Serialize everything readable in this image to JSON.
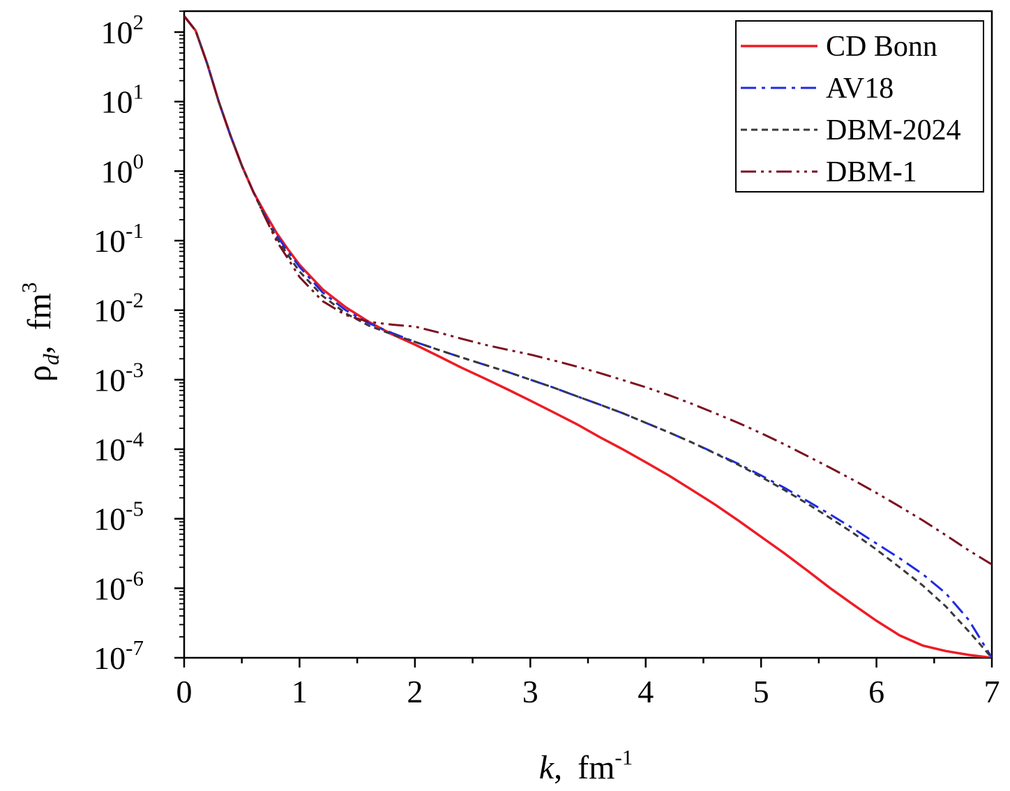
{
  "chart_data": {
    "type": "line",
    "xlabel": {
      "var": "k",
      "sep": ",",
      "unit": "fm",
      "exp": "-1"
    },
    "ylabel": {
      "var": "ρ",
      "sub": "d",
      "sep": ",",
      "unit": "fm",
      "exp": "3"
    },
    "x_ticks": [
      "0",
      "1",
      "2",
      "3",
      "4",
      "5",
      "6",
      "7"
    ],
    "y_tick_exponents": [
      "2",
      "1",
      "0",
      "-1",
      "-2",
      "-3",
      "-4",
      "-5",
      "-6",
      "-7"
    ],
    "y_tick_base": "10",
    "xlim": [
      0,
      7
    ],
    "ylim": [
      1e-07,
      200
    ],
    "yscale": "log",
    "grid": false,
    "legend_position": "top-right",
    "series": [
      {
        "name": "CD Bonn",
        "color": "#ee1c25",
        "dash": "solid",
        "x": [
          0,
          0.1,
          0.2,
          0.3,
          0.4,
          0.5,
          0.6,
          0.7,
          0.8,
          0.9,
          1.0,
          1.2,
          1.4,
          1.6,
          1.8,
          2.0,
          2.2,
          2.4,
          2.6,
          2.8,
          3.0,
          3.2,
          3.4,
          3.6,
          3.8,
          4.0,
          4.2,
          4.4,
          4.6,
          4.8,
          5.0,
          5.2,
          5.4,
          5.6,
          5.8,
          6.0,
          6.2,
          6.4,
          6.6,
          6.8,
          7.0
        ],
        "y": [
          170,
          105,
          35,
          10,
          3.3,
          1.2,
          0.5,
          0.25,
          0.13,
          0.075,
          0.045,
          0.02,
          0.011,
          0.0068,
          0.0045,
          0.0032,
          0.0022,
          0.0015,
          0.00105,
          0.00073,
          0.0005,
          0.00034,
          0.00023,
          0.00015,
          0.0001,
          6.5e-05,
          4.2e-05,
          2.6e-05,
          1.6e-05,
          9.5e-06,
          5.5e-06,
          3.2e-06,
          1.8e-06,
          1e-06,
          5.8e-07,
          3.4e-07,
          2.1e-07,
          1.5e-07,
          1.25e-07,
          1.1e-07,
          1e-07
        ]
      },
      {
        "name": "AV18",
        "color": "#1f2be0",
        "dash": "dashdot",
        "x": [
          0,
          0.1,
          0.2,
          0.3,
          0.4,
          0.5,
          0.6,
          0.7,
          0.8,
          0.9,
          1.0,
          1.2,
          1.4,
          1.6,
          1.8,
          2.0,
          2.2,
          2.4,
          2.6,
          2.8,
          3.0,
          3.2,
          3.4,
          3.6,
          3.8,
          4.0,
          4.2,
          4.4,
          4.6,
          4.8,
          5.0,
          5.2,
          5.4,
          5.6,
          5.8,
          6.0,
          6.2,
          6.4,
          6.6,
          6.8,
          7.0
        ],
        "y": [
          170,
          105,
          35,
          10,
          3.3,
          1.2,
          0.5,
          0.23,
          0.12,
          0.07,
          0.042,
          0.018,
          0.01,
          0.0065,
          0.0047,
          0.0035,
          0.0027,
          0.0021,
          0.00165,
          0.0013,
          0.001,
          0.00077,
          0.00058,
          0.00044,
          0.00033,
          0.00024,
          0.000175,
          0.000125,
          8.8e-05,
          6.2e-05,
          4.2e-05,
          2.8e-05,
          1.8e-05,
          1.15e-05,
          7.2e-06,
          4.4e-06,
          2.7e-06,
          1.6e-06,
          8.5e-07,
          3.5e-07,
          1e-07
        ]
      },
      {
        "name": "DBM-2024",
        "color": "#3a3a3a",
        "dash": "dash",
        "x": [
          0,
          0.1,
          0.2,
          0.3,
          0.4,
          0.5,
          0.6,
          0.7,
          0.8,
          0.9,
          1.0,
          1.2,
          1.4,
          1.6,
          1.8,
          2.0,
          2.2,
          2.4,
          2.6,
          2.8,
          3.0,
          3.2,
          3.4,
          3.6,
          3.8,
          4.0,
          4.2,
          4.4,
          4.6,
          4.8,
          5.0,
          5.2,
          5.4,
          5.6,
          5.8,
          6.0,
          6.2,
          6.4,
          6.6,
          6.8,
          7.0
        ],
        "y": [
          170,
          105,
          35,
          10,
          3.3,
          1.2,
          0.5,
          0.22,
          0.11,
          0.062,
          0.036,
          0.016,
          0.009,
          0.006,
          0.0045,
          0.0035,
          0.0027,
          0.0021,
          0.00165,
          0.0013,
          0.001,
          0.00077,
          0.00058,
          0.00044,
          0.00033,
          0.00024,
          0.000175,
          0.000125,
          8.7e-05,
          6e-05,
          4e-05,
          2.6e-05,
          1.65e-05,
          1.02e-05,
          6.2e-06,
          3.6e-06,
          2e-06,
          1.1e-06,
          5.5e-07,
          2.4e-07,
          1e-07
        ]
      },
      {
        "name": "DBM-1",
        "color": "#7b1020",
        "dash": "dashdotdot",
        "x": [
          0,
          0.1,
          0.2,
          0.3,
          0.4,
          0.5,
          0.6,
          0.7,
          0.8,
          0.9,
          1.0,
          1.2,
          1.4,
          1.6,
          1.8,
          2.0,
          2.2,
          2.4,
          2.6,
          2.8,
          3.0,
          3.2,
          3.4,
          3.6,
          3.8,
          4.0,
          4.2,
          4.4,
          4.6,
          4.8,
          5.0,
          5.2,
          5.4,
          5.6,
          5.8,
          6.0,
          6.2,
          6.4,
          6.6,
          6.8,
          7.0
        ],
        "y": [
          170,
          105,
          35,
          10,
          3.3,
          1.2,
          0.5,
          0.22,
          0.1,
          0.055,
          0.03,
          0.0135,
          0.0085,
          0.0068,
          0.0062,
          0.0058,
          0.0048,
          0.0039,
          0.0032,
          0.0027,
          0.0023,
          0.0019,
          0.00155,
          0.00125,
          0.00099,
          0.00078,
          0.0006,
          0.00045,
          0.00033,
          0.00024,
          0.00017,
          0.000118,
          8e-05,
          5.4e-05,
          3.6e-05,
          2.35e-05,
          1.5e-05,
          9.5e-06,
          5.8e-06,
          3.5e-06,
          2.2e-06
        ]
      }
    ]
  }
}
